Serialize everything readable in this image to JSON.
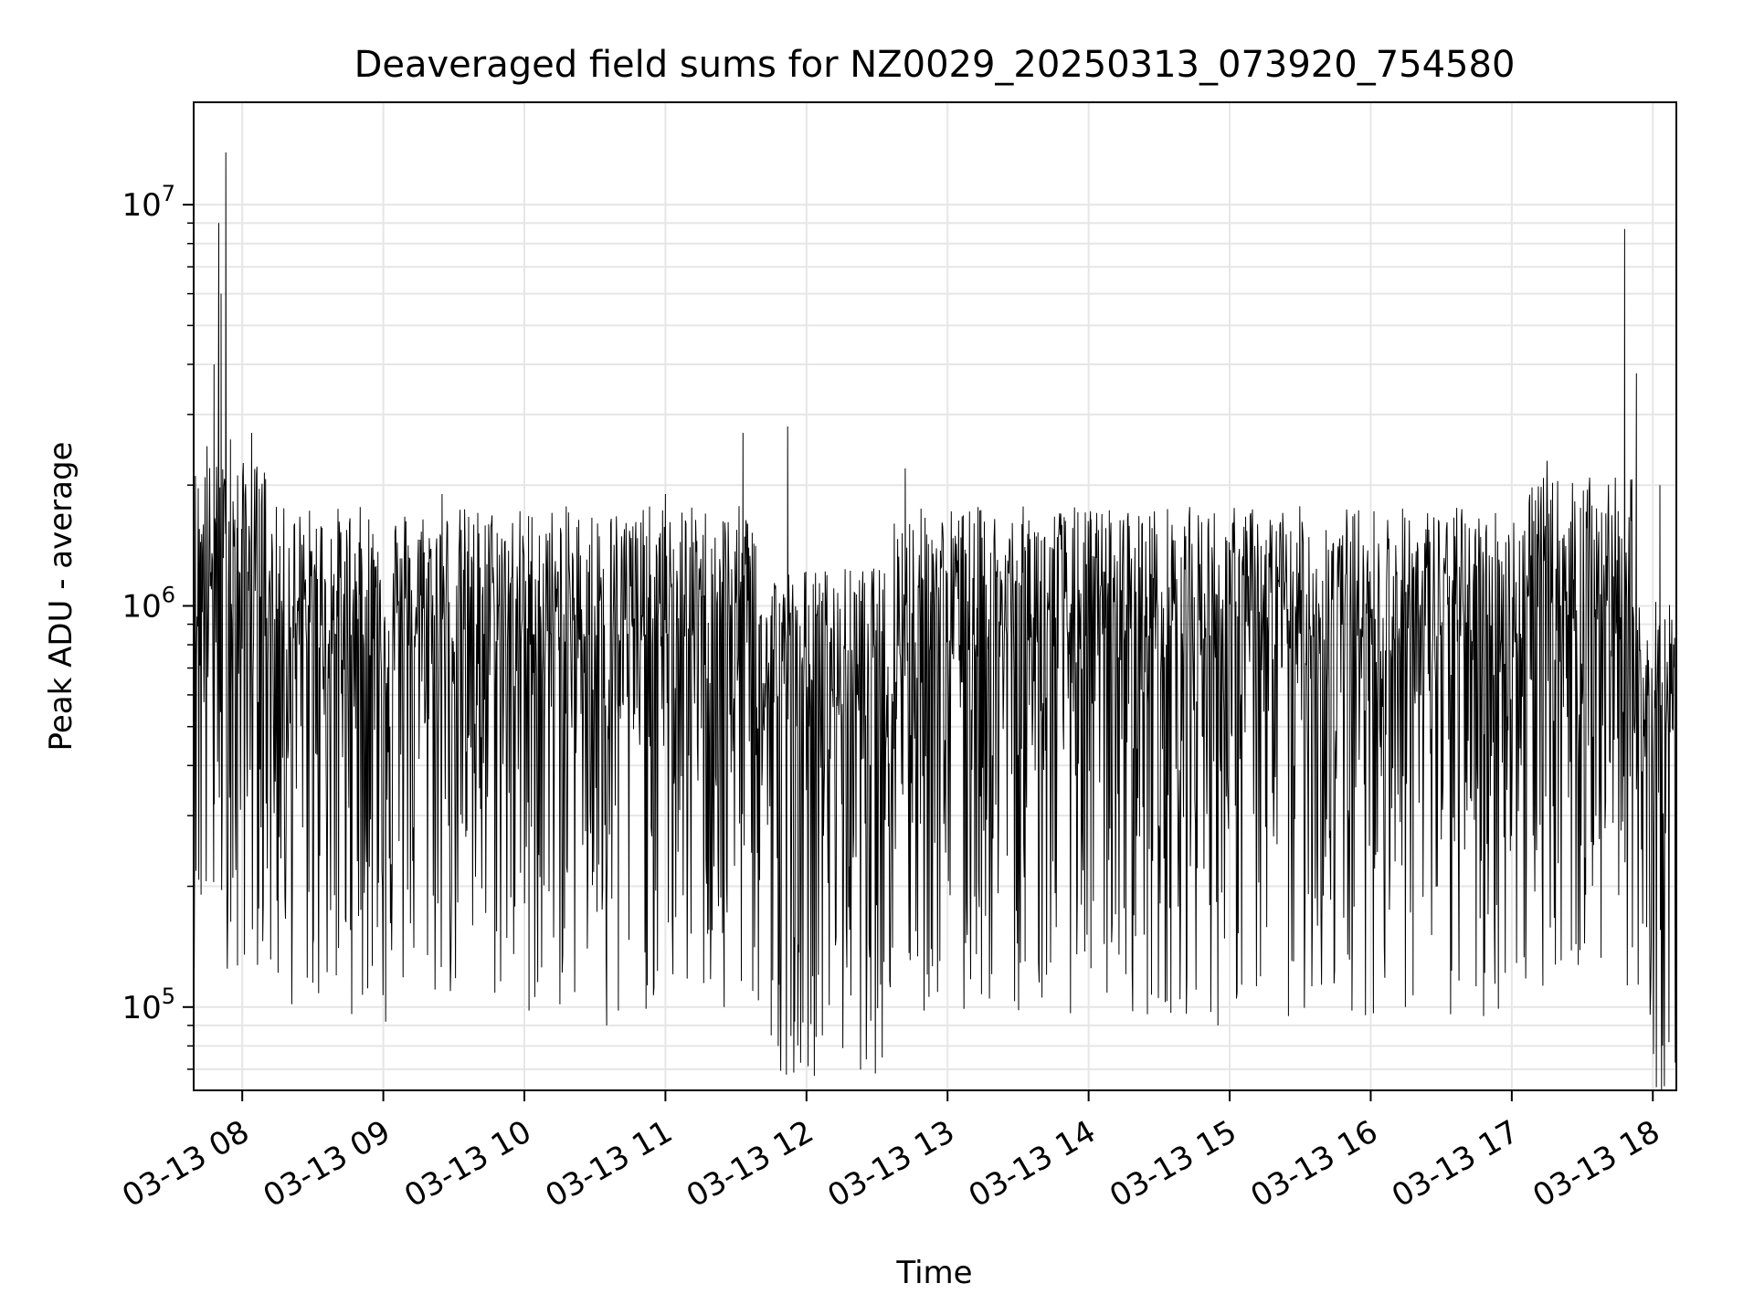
{
  "chart_data": {
    "type": "line",
    "title": "Deaveraged field sums for NZ0029_20250313_073920_754580",
    "xlabel": "Time",
    "ylabel": "Peak ADU - average",
    "yscale": "log",
    "xlim": [
      "2025-03-13T07:39:20",
      "2025-03-13T18:10:00"
    ],
    "ylim": [
      62000,
      18000000
    ],
    "grid": true,
    "line_color": "#000000",
    "x_ticks": [
      {
        "value": "2025-03-13T08:00",
        "label": "03-13 08"
      },
      {
        "value": "2025-03-13T09:00",
        "label": "03-13 09"
      },
      {
        "value": "2025-03-13T10:00",
        "label": "03-13 10"
      },
      {
        "value": "2025-03-13T11:00",
        "label": "03-13 11"
      },
      {
        "value": "2025-03-13T12:00",
        "label": "03-13 12"
      },
      {
        "value": "2025-03-13T13:00",
        "label": "03-13 13"
      },
      {
        "value": "2025-03-13T14:00",
        "label": "03-13 14"
      },
      {
        "value": "2025-03-13T15:00",
        "label": "03-13 15"
      },
      {
        "value": "2025-03-13T16:00",
        "label": "03-13 16"
      },
      {
        "value": "2025-03-13T17:00",
        "label": "03-13 17"
      },
      {
        "value": "2025-03-13T18:00",
        "label": "03-13 18"
      }
    ],
    "y_ticks": [
      {
        "value": 100000,
        "base": "10",
        "exp": "5"
      },
      {
        "value": 1000000,
        "base": "10",
        "exp": "6"
      },
      {
        "value": 10000000,
        "base": "10",
        "exp": "7"
      }
    ],
    "series": [
      {
        "points": [
          [
            "2025-03-13T07:39:20",
            900000
          ],
          [
            "2025-03-13T07:45",
            2500000
          ],
          [
            "2025-03-13T07:48",
            4000000
          ],
          [
            "2025-03-13T07:50",
            9000000
          ],
          [
            "2025-03-13T07:51",
            6000000
          ],
          [
            "2025-03-13T07:53",
            13500000
          ],
          [
            "2025-03-13T07:55",
            2600000
          ],
          [
            "2025-03-13T07:56",
            210000
          ],
          [
            "2025-03-13T08:00",
            1500000
          ],
          [
            "2025-03-13T07:58",
            127000
          ],
          [
            "2025-03-13T08:04",
            2700000
          ],
          [
            "2025-03-13T08:30",
            115000
          ],
          [
            "2025-03-13T08:40",
            120000
          ],
          [
            "2025-03-13T09:01",
            92000
          ],
          [
            "2025-03-13T09:25",
            1900000
          ],
          [
            "2025-03-13T10:02",
            98000
          ],
          [
            "2025-03-13T10:35",
            90000
          ],
          [
            "2025-03-13T10:40",
            98000
          ],
          [
            "2025-03-13T11:00",
            1900000
          ],
          [
            "2025-03-13T11:25",
            100000
          ],
          [
            "2025-03-13T11:33",
            2700000
          ],
          [
            "2025-03-13T11:45",
            85000
          ],
          [
            "2025-03-13T11:48",
            80000
          ],
          [
            "2025-03-13T11:52",
            2800000
          ],
          [
            "2025-03-13T11:55",
            92000
          ],
          [
            "2025-03-13T12:42",
            2200000
          ],
          [
            "2025-03-13T12:50",
            98000
          ],
          [
            "2025-03-13T13:07",
            99000
          ],
          [
            "2025-03-13T13:33",
            130000
          ],
          [
            "2025-03-13T14:01",
            125000
          ],
          [
            "2025-03-13T14:25",
            96000
          ],
          [
            "2025-03-13T14:55",
            90000
          ],
          [
            "2025-03-13T15:25",
            95000
          ],
          [
            "2025-03-13T15:52",
            98000
          ],
          [
            "2025-03-13T16:18",
            107000
          ],
          [
            "2025-03-13T16:34",
            96000
          ],
          [
            "2025-03-13T16:48",
            95000
          ],
          [
            "2025-03-13T17:15",
            2300000
          ],
          [
            "2025-03-13T17:40",
            1700000
          ],
          [
            "2025-03-13T17:48",
            8700000
          ],
          [
            "2025-03-13T17:53",
            3800000
          ],
          [
            "2025-03-13T18:03",
            2000000
          ],
          [
            "2025-03-13T18:10",
            200000
          ]
        ]
      }
    ]
  }
}
